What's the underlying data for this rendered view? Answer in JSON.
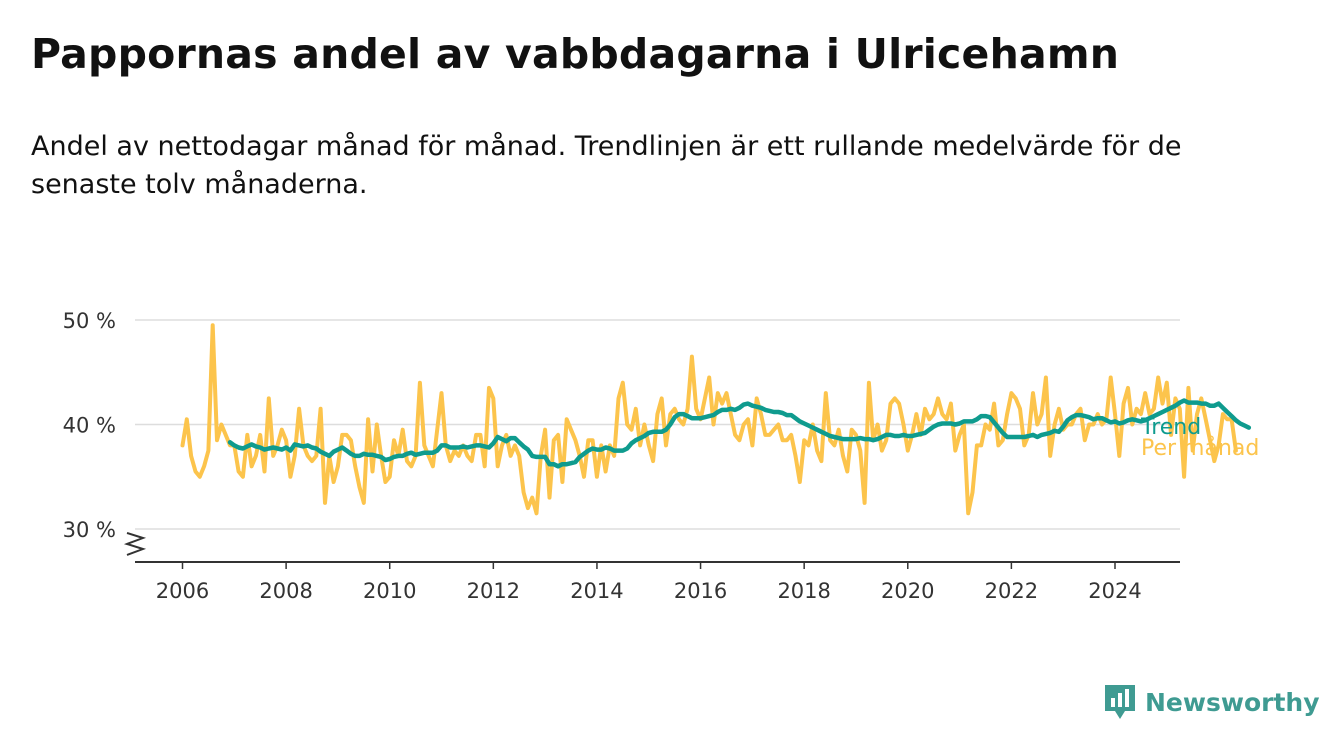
{
  "title": "Pappornas andel av vabbdagarna i Ulricehamn",
  "subtitle": "Andel av nettodagar månad för månad. Trendlinjen är ett rullande medelvärde för de senaste tolv månaderna.",
  "brand": {
    "name": "Newsworthy",
    "icon": "newsworthy-logo-icon",
    "color": "#3f9b92"
  },
  "colors": {
    "monthly": "#fcc44c",
    "trend": "#0f9b8e",
    "grid": "#dddddd",
    "axis": "#333333"
  },
  "chart_data": {
    "type": "line",
    "y_axis": {
      "min": 30,
      "max": 50,
      "ticks": [
        30,
        40,
        50
      ],
      "tick_labels": [
        "30 %",
        "40 %",
        "50 %"
      ],
      "broken_baseline": true
    },
    "x_axis": {
      "range": [
        2006,
        2024.6
      ],
      "ticks": [
        2006,
        2008,
        2010,
        2012,
        2014,
        2016,
        2018,
        2020,
        2022,
        2024
      ]
    },
    "grid": "horizontal",
    "series": [
      {
        "name": "Per månad",
        "start": "2006-01",
        "values": [
          38,
          40.5,
          37,
          35.5,
          35,
          36,
          37.5,
          49.5,
          38.5,
          40,
          39,
          38,
          38,
          35.5,
          35,
          39,
          36,
          37,
          39,
          35.5,
          42.5,
          37,
          38,
          39.5,
          38.5,
          35,
          37,
          41.5,
          38,
          37,
          36.5,
          37,
          41.5,
          32.5,
          37,
          34.5,
          36,
          39,
          39,
          38.5,
          36,
          34,
          32.5,
          40.5,
          35.5,
          40,
          37,
          34.5,
          35,
          38.5,
          37,
          39.5,
          36.5,
          36,
          37,
          44,
          38,
          37,
          36,
          39.5,
          43,
          38,
          36.5,
          37.5,
          37,
          38,
          37,
          36.5,
          39,
          39,
          36,
          43.5,
          42.5,
          36,
          38,
          39,
          37,
          38,
          37,
          33.5,
          32,
          33,
          31.5,
          37,
          39.5,
          33,
          38.5,
          39,
          34.5,
          40.5,
          39.5,
          38.5,
          37,
          35,
          38.5,
          38.5,
          35,
          38,
          35.5,
          38,
          37,
          42.5,
          44,
          40,
          39.5,
          41.5,
          38,
          40,
          38,
          36.5,
          41,
          42.5,
          38,
          41,
          41.5,
          40.5,
          40,
          41.5,
          46.5,
          41.5,
          40.5,
          42.5,
          44.5,
          40,
          43,
          42,
          43,
          41,
          39,
          38.5,
          40,
          40.5,
          38,
          42.5,
          41,
          39,
          39,
          39.5,
          40,
          38.5,
          38.5,
          39,
          37,
          34.5,
          38.5,
          38,
          40,
          37.5,
          36.5,
          43,
          38.5,
          38,
          39.5,
          37,
          35.5,
          39.5,
          39,
          37.5,
          32.5,
          44,
          38.5,
          40,
          37.5,
          38.5,
          42,
          42.5,
          42,
          40,
          37.5,
          39,
          41,
          39,
          41.5,
          40.5,
          41,
          42.5,
          41,
          40.5,
          42,
          37.5,
          39,
          40,
          31.5,
          33.5,
          38,
          38,
          40,
          39.5,
          42,
          38,
          38.5,
          41,
          43,
          42.5,
          41.5,
          38,
          39,
          43,
          40,
          41,
          44.5,
          37,
          40,
          41.5,
          39.5,
          40,
          40,
          41,
          41.5,
          38.5,
          40,
          40,
          41,
          40,
          40.5,
          44.5,
          41,
          37,
          42,
          43.5,
          40,
          41.5,
          41,
          43,
          41,
          41.5,
          44.5,
          42,
          44,
          39,
          42.5,
          41.5,
          35,
          43.5,
          37.5,
          41,
          42.5,
          40.5,
          38.5,
          36.5,
          38,
          41,
          40.5,
          40.5,
          37.5
        ]
      },
      {
        "name": "Trend",
        "start": "2006-12",
        "values": [
          38.3,
          38,
          37.8,
          37.7,
          37.9,
          38.1,
          37.9,
          37.8,
          37.6,
          37.7,
          37.8,
          37.7,
          37.6,
          37.8,
          37.5,
          38.1,
          38,
          37.9,
          38,
          37.8,
          37.7,
          37.4,
          37.2,
          37,
          37.4,
          37.6,
          37.8,
          37.5,
          37.2,
          37,
          37,
          37.2,
          37.1,
          37.1,
          37,
          36.9,
          36.6,
          36.7,
          36.9,
          37,
          37,
          37.2,
          37.3,
          37.1,
          37.2,
          37.3,
          37.3,
          37.3,
          37.5,
          38,
          38,
          37.8,
          37.8,
          37.8,
          37.9,
          37.8,
          37.9,
          38,
          38,
          37.9,
          37.8,
          38.2,
          38.8,
          38.6,
          38.4,
          38.7,
          38.7,
          38.3,
          37.9,
          37.6,
          37,
          36.9,
          36.9,
          36.9,
          36.2,
          36.2,
          36,
          36.2,
          36.2,
          36.3,
          36.4,
          36.9,
          37.2,
          37.5,
          37.7,
          37.6,
          37.6,
          37.8,
          37.7,
          37.5,
          37.5,
          37.5,
          37.7,
          38.2,
          38.5,
          38.7,
          38.9,
          39.2,
          39.3,
          39.3,
          39.3,
          39.5,
          40,
          40.7,
          41,
          41,
          40.8,
          40.6,
          40.6,
          40.6,
          40.7,
          40.8,
          40.9,
          41.2,
          41.4,
          41.4,
          41.5,
          41.4,
          41.6,
          41.9,
          42,
          41.8,
          41.7,
          41.6,
          41.4,
          41.3,
          41.2,
          41.2,
          41.1,
          40.9,
          40.9,
          40.6,
          40.3,
          40.1,
          39.9,
          39.7,
          39.5,
          39.3,
          39.1,
          38.9,
          38.8,
          38.7,
          38.6,
          38.6,
          38.6,
          38.6,
          38.7,
          38.6,
          38.6,
          38.5,
          38.6,
          38.8,
          39,
          39,
          38.9,
          38.9,
          39,
          38.9,
          38.9,
          39,
          39.1,
          39.2,
          39.5,
          39.8,
          40,
          40.1,
          40.1,
          40.1,
          40,
          40.1,
          40.3,
          40.3,
          40.3,
          40.5,
          40.8,
          40.8,
          40.7,
          40.2,
          39.7,
          39.2,
          38.8,
          38.8,
          38.8,
          38.8,
          38.8,
          38.9,
          39,
          38.8,
          39,
          39.1,
          39.2,
          39.4,
          39.3,
          39.8,
          40.4,
          40.7,
          40.9,
          40.9,
          40.8,
          40.7,
          40.5,
          40.6,
          40.6,
          40.4,
          40.2,
          40.3,
          40.1,
          40.2,
          40.4,
          40.5,
          40.4,
          40.3,
          40.4,
          40.6,
          40.8,
          41,
          41.2,
          41.4,
          41.6,
          41.8,
          42.1,
          42.3,
          42.1,
          42.1,
          42.1,
          42,
          42,
          41.8,
          41.8,
          42,
          41.6,
          41.2,
          40.8,
          40.4,
          40.1,
          39.9,
          39.7
        ]
      }
    ]
  }
}
